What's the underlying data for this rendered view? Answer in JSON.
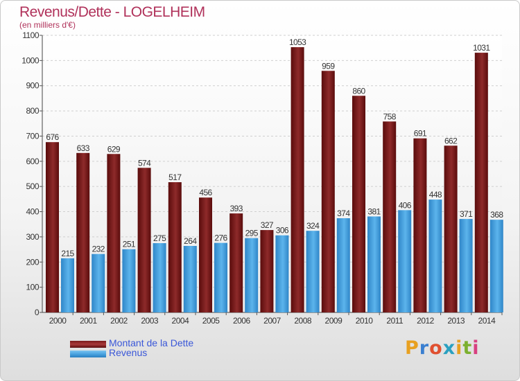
{
  "chart_data": {
    "type": "bar",
    "title": "Revenus/Dette - LOGELHEIM",
    "subtitle": "(en milliers d'€)",
    "categories": [
      "2000",
      "2001",
      "2002",
      "2003",
      "2004",
      "2005",
      "2006",
      "2007",
      "2008",
      "2009",
      "2010",
      "2011",
      "2012",
      "2013",
      "2014"
    ],
    "series": [
      {
        "name": "Montant de la Dette",
        "color": "#7a1a1a",
        "values": [
          676,
          633,
          629,
          574,
          517,
          456,
          393,
          327,
          1053,
          959,
          860,
          758,
          691,
          662,
          1031
        ]
      },
      {
        "name": "Revenus",
        "color": "#4aa3e0",
        "values": [
          215,
          232,
          251,
          275,
          264,
          276,
          295,
          306,
          324,
          374,
          381,
          406,
          448,
          371,
          368
        ]
      }
    ],
    "ylim": [
      0,
      1100
    ],
    "yticks": [
      0,
      100,
      200,
      300,
      400,
      500,
      600,
      700,
      800,
      900,
      1000,
      1100
    ],
    "grid": true,
    "legend_position": "bottom-left"
  },
  "logo_text": "Proxiti",
  "logo_colors": [
    "#e8a020",
    "#3a7fd0",
    "#e05030",
    "#2aa0c0",
    "#e8a020",
    "#7cb030",
    "#d84080"
  ]
}
